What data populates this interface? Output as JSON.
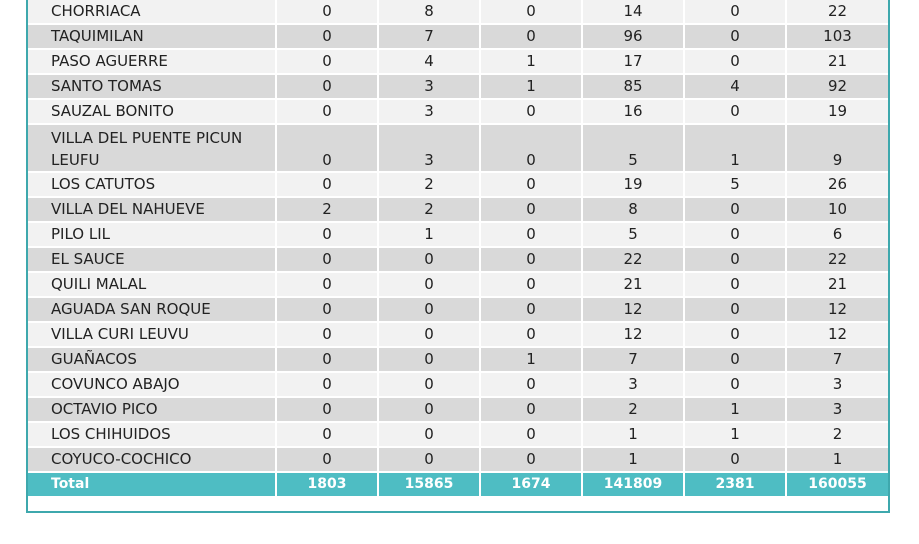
{
  "rows": [
    {
      "name": "CHORRIACA",
      "v": [
        "0",
        "8",
        "0",
        "14",
        "0",
        "22"
      ]
    },
    {
      "name": "TAQUIMILAN",
      "v": [
        "0",
        "7",
        "0",
        "96",
        "0",
        "103"
      ]
    },
    {
      "name": "PASO AGUERRE",
      "v": [
        "0",
        "4",
        "1",
        "17",
        "0",
        "21"
      ]
    },
    {
      "name": "SANTO TOMAS",
      "v": [
        "0",
        "3",
        "1",
        "85",
        "4",
        "92"
      ]
    },
    {
      "name": "SAUZAL BONITO",
      "v": [
        "0",
        "3",
        "0",
        "16",
        "0",
        "19"
      ]
    },
    {
      "name": "VILLA DEL PUENTE PICUN LEUFU",
      "v": [
        "0",
        "3",
        "0",
        "5",
        "1",
        "9"
      ]
    },
    {
      "name": "LOS CATUTOS",
      "v": [
        "0",
        "2",
        "0",
        "19",
        "5",
        "26"
      ]
    },
    {
      "name": "VILLA DEL NAHUEVE",
      "v": [
        "2",
        "2",
        "0",
        "8",
        "0",
        "10"
      ]
    },
    {
      "name": "PILO LIL",
      "v": [
        "0",
        "1",
        "0",
        "5",
        "0",
        "6"
      ]
    },
    {
      "name": "EL SAUCE",
      "v": [
        "0",
        "0",
        "0",
        "22",
        "0",
        "22"
      ]
    },
    {
      "name": "QUILI MALAL",
      "v": [
        "0",
        "0",
        "0",
        "21",
        "0",
        "21"
      ]
    },
    {
      "name": "AGUADA SAN ROQUE",
      "v": [
        "0",
        "0",
        "0",
        "12",
        "0",
        "12"
      ]
    },
    {
      "name": "VILLA CURI LEUVU",
      "v": [
        "0",
        "0",
        "0",
        "12",
        "0",
        "12"
      ]
    },
    {
      "name": "GUAÑACOS",
      "v": [
        "0",
        "0",
        "1",
        "7",
        "0",
        "7"
      ]
    },
    {
      "name": "COVUNCO ABAJO",
      "v": [
        "0",
        "0",
        "0",
        "3",
        "0",
        "3"
      ]
    },
    {
      "name": "OCTAVIO PICO",
      "v": [
        "0",
        "0",
        "0",
        "2",
        "1",
        "3"
      ]
    },
    {
      "name": "LOS CHIHUIDOS",
      "v": [
        "0",
        "0",
        "0",
        "1",
        "1",
        "2"
      ]
    },
    {
      "name": "COYUCO-COCHICO",
      "v": [
        "0",
        "0",
        "0",
        "1",
        "0",
        "1"
      ]
    }
  ],
  "total": {
    "label": "Total",
    "v": [
      "1803",
      "15865",
      "1674",
      "141809",
      "2381",
      "160055"
    ]
  }
}
